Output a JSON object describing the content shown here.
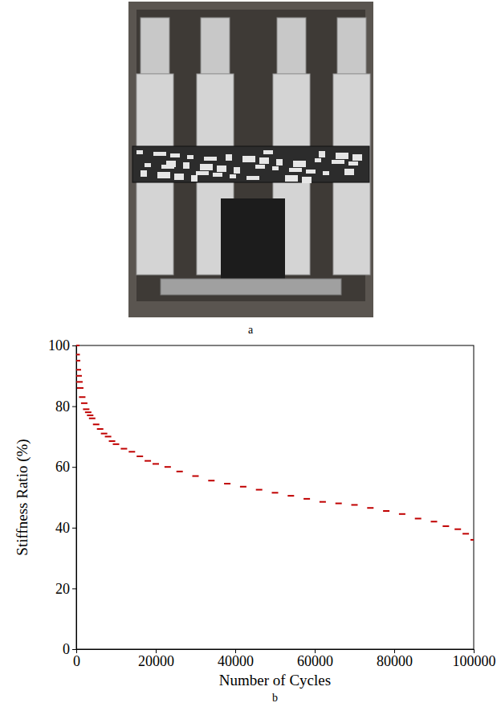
{
  "photo": {
    "caption": "a"
  },
  "chart_data": {
    "type": "scatter",
    "caption": "b",
    "x_label": "Number of Cycles",
    "y_label": "Stiffness Ratio (%)",
    "x": [
      0,
      100,
      200,
      400,
      600,
      800,
      1000,
      1500,
      2000,
      2500,
      3000,
      3500,
      4000,
      5000,
      6000,
      7000,
      8000,
      9000,
      10000,
      12000,
      14000,
      16000,
      18000,
      20000,
      23000,
      26000,
      30000,
      34000,
      38000,
      42000,
      46000,
      50000,
      54000,
      58000,
      62000,
      66000,
      70000,
      74000,
      78000,
      82000,
      86000,
      90000,
      93000,
      96000,
      98000,
      100000
    ],
    "values": [
      100,
      97,
      95,
      92,
      90,
      88,
      86,
      83,
      81,
      79,
      78,
      77,
      76,
      74,
      72.5,
      71,
      70,
      68.5,
      67.5,
      66,
      65,
      63.5,
      62,
      61,
      60,
      58.5,
      57,
      55.5,
      54.5,
      53.5,
      52.5,
      51.5,
      50.5,
      49.5,
      48.5,
      48,
      47.5,
      46.5,
      45.5,
      44.5,
      43,
      42,
      40.5,
      39.5,
      38,
      36
    ],
    "color": "#c00000",
    "marker": "dash",
    "xlim": [
      0,
      100000
    ],
    "xticks": [
      0,
      20000,
      40000,
      60000,
      80000,
      100000
    ],
    "ylim": [
      0,
      100
    ],
    "yticks": [
      0,
      20,
      40,
      60,
      80,
      100
    ],
    "grid": false
  }
}
